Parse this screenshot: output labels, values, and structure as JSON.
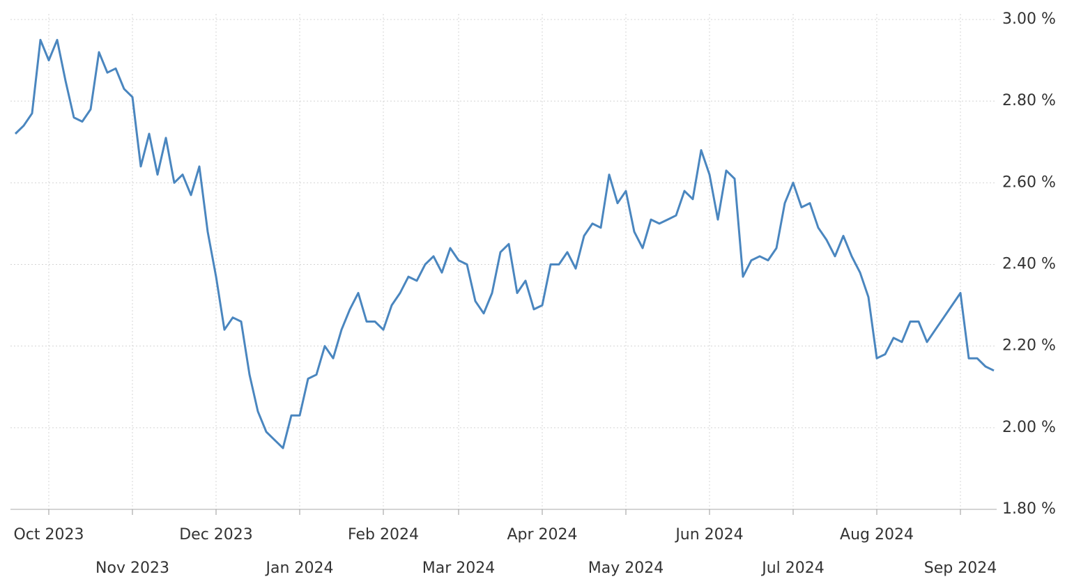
{
  "chart_data": {
    "type": "line",
    "categories": [
      null,
      null,
      null,
      null,
      "Oct 2023",
      null,
      null,
      null,
      null,
      null,
      null,
      null,
      null,
      null,
      "Nov 2023",
      null,
      null,
      null,
      null,
      null,
      null,
      null,
      null,
      null,
      "Dec 2023",
      null,
      null,
      null,
      null,
      null,
      null,
      null,
      null,
      null,
      "Jan 2024",
      null,
      null,
      null,
      null,
      null,
      null,
      null,
      null,
      null,
      "Feb 2024",
      null,
      null,
      null,
      null,
      null,
      null,
      null,
      null,
      "Mar 2024",
      null,
      null,
      null,
      null,
      null,
      null,
      null,
      null,
      null,
      "Apr 2024",
      null,
      null,
      null,
      null,
      null,
      null,
      null,
      null,
      null,
      "May 2024",
      null,
      null,
      null,
      null,
      null,
      null,
      null,
      null,
      null,
      "Jun 2024",
      null,
      null,
      null,
      null,
      null,
      null,
      null,
      null,
      null,
      "Jul 2024",
      null,
      null,
      null,
      null,
      null,
      null,
      null,
      null,
      null,
      "Aug 2024",
      null,
      null,
      null,
      null,
      null,
      null,
      null,
      null,
      null,
      "Sep 2024",
      null,
      null,
      null,
      null
    ],
    "values": [
      2.72,
      2.74,
      2.77,
      2.95,
      2.9,
      2.95,
      2.85,
      2.76,
      2.75,
      2.78,
      2.92,
      2.87,
      2.88,
      2.83,
      2.81,
      2.64,
      2.72,
      2.62,
      2.71,
      2.6,
      2.62,
      2.57,
      2.64,
      2.48,
      2.37,
      2.24,
      2.27,
      2.26,
      2.13,
      2.04,
      1.99,
      1.97,
      1.95,
      2.03,
      2.03,
      2.12,
      2.13,
      2.2,
      2.17,
      2.24,
      2.29,
      2.33,
      2.26,
      2.26,
      2.24,
      2.3,
      2.33,
      2.37,
      2.36,
      2.4,
      2.42,
      2.38,
      2.44,
      2.41,
      2.4,
      2.31,
      2.28,
      2.33,
      2.43,
      2.45,
      2.33,
      2.36,
      2.29,
      2.3,
      2.4,
      2.4,
      2.43,
      2.39,
      2.47,
      2.5,
      2.49,
      2.62,
      2.55,
      2.58,
      2.48,
      2.44,
      2.51,
      2.5,
      2.51,
      2.52,
      2.58,
      2.56,
      2.68,
      2.62,
      2.51,
      2.63,
      2.61,
      2.37,
      2.41,
      2.42,
      2.41,
      2.44,
      2.55,
      2.6,
      2.54,
      2.55,
      2.49,
      2.46,
      2.42,
      2.47,
      2.42,
      2.38,
      2.32,
      2.17,
      2.18,
      2.22,
      2.21,
      2.26,
      2.26,
      2.21,
      2.24,
      2.27,
      2.3,
      2.33,
      2.17,
      2.17,
      2.15,
      2.14
    ],
    "color": "#4a86bf",
    "ylim": [
      1.8,
      3.0
    ],
    "yticks": [
      {
        "value": 1.8,
        "label": "1.80 %"
      },
      {
        "value": 2.0,
        "label": "2.00 %"
      },
      {
        "value": 2.2,
        "label": "2.20 %"
      },
      {
        "value": 2.4,
        "label": "2.40 %"
      },
      {
        "value": 2.6,
        "label": "2.60 %"
      },
      {
        "value": 2.8,
        "label": "2.80 %"
      },
      {
        "value": 3.0,
        "label": "3.00 %"
      }
    ],
    "grid": true
  }
}
